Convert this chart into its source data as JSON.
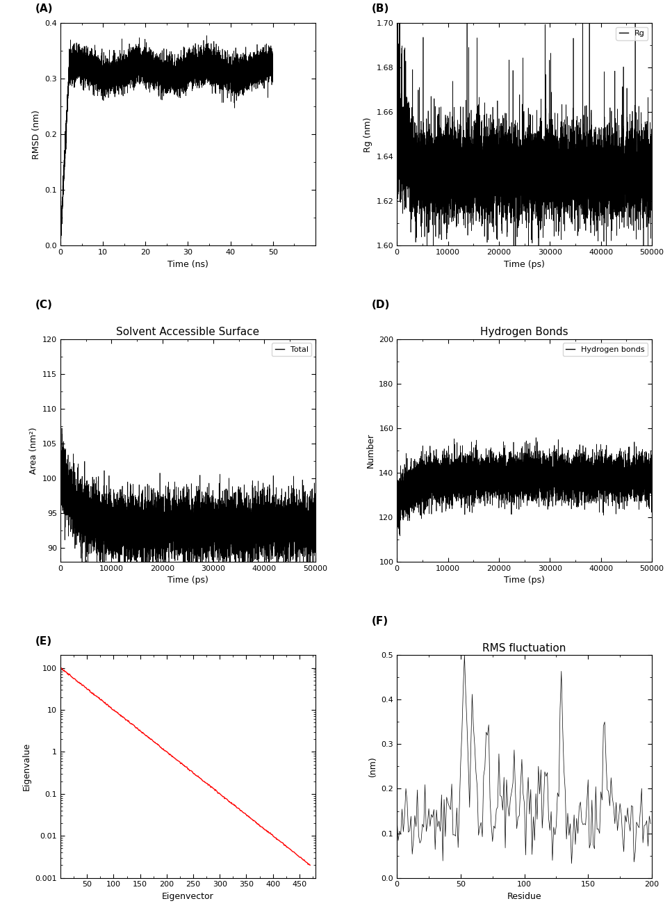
{
  "panel_A": {
    "label": "(A)",
    "ylabel": "RMSD (nm)",
    "xlabel": "Time (ns)",
    "xlim": [
      0,
      60
    ],
    "ylim": [
      0,
      0.4
    ],
    "yticks": [
      0,
      0.1,
      0.2,
      0.3,
      0.4
    ],
    "xticks": [
      0,
      10,
      20,
      30,
      40,
      50
    ],
    "color": "#000000",
    "linewidth": 0.5
  },
  "panel_B": {
    "label": "(B)",
    "ylabel": "Rg (nm)",
    "xlabel": "Time (ps)",
    "xlim": [
      0,
      50000
    ],
    "ylim": [
      1.6,
      1.7
    ],
    "yticks": [
      1.6,
      1.62,
      1.64,
      1.66,
      1.68,
      1.7
    ],
    "xticks": [
      0,
      10000,
      20000,
      30000,
      40000,
      50000
    ],
    "color": "#000000",
    "linewidth": 0.5,
    "legend": "Rg"
  },
  "panel_C": {
    "label": "(C)",
    "title": "Solvent Accessible Surface",
    "ylabel": "Area (nm²)",
    "xlabel": "Time (ps)",
    "xlim": [
      0,
      50000
    ],
    "ylim": [
      88,
      120
    ],
    "yticks": [
      90,
      95,
      100,
      105,
      110,
      115,
      120
    ],
    "xticks": [
      0,
      10000,
      20000,
      30000,
      40000,
      50000
    ],
    "color": "#000000",
    "linewidth": 0.5,
    "legend": "Total"
  },
  "panel_D": {
    "label": "(D)",
    "title": "Hydrogen Bonds",
    "ylabel": "Number",
    "xlabel": "Time (ps)",
    "xlim": [
      0,
      50000
    ],
    "ylim": [
      100,
      200
    ],
    "yticks": [
      100,
      120,
      140,
      160,
      180,
      200
    ],
    "xticks": [
      0,
      10000,
      20000,
      30000,
      40000,
      50000
    ],
    "color": "#000000",
    "linewidth": 0.5,
    "legend": "Hydrogen bonds"
  },
  "panel_E": {
    "label": "(E)",
    "ylabel": "Eigenvalue",
    "xlabel": "Eigenvector",
    "xlim": [
      0,
      480
    ],
    "ylim_log": [
      0.001,
      200
    ],
    "ytick_vals": [
      0.001,
      0.01,
      0.1,
      1,
      10,
      100
    ],
    "ytick_labels": [
      "0.001",
      "0.01",
      "0.1",
      "1",
      "10",
      "100"
    ],
    "xticks": [
      50,
      100,
      150,
      200,
      250,
      300,
      350,
      400,
      450
    ],
    "color": "#ff0000",
    "linewidth": 1.0
  },
  "panel_F": {
    "label": "(F)",
    "title": "RMS fluctuation",
    "ylabel": "(nm)",
    "xlabel": "Residue",
    "xlim": [
      0,
      200
    ],
    "ylim": [
      0,
      0.5
    ],
    "yticks": [
      0.0,
      0.1,
      0.2,
      0.3,
      0.4,
      0.5
    ],
    "xticks": [
      0,
      50,
      100,
      150,
      200
    ],
    "color": "#000000",
    "linewidth": 0.5
  },
  "background_color": "#ffffff",
  "seed": 42
}
